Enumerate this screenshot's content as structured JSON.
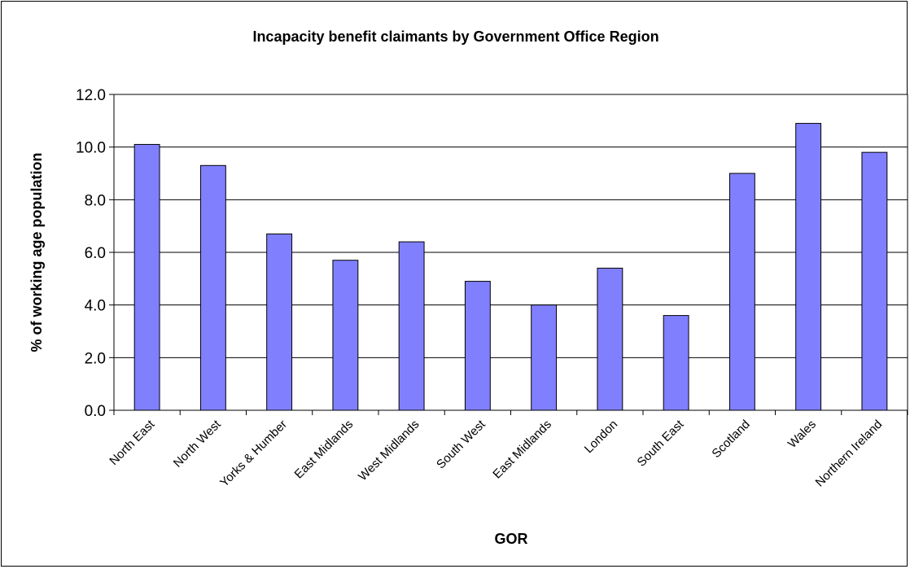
{
  "chart_data": {
    "type": "bar",
    "title": "Incapacity benefit claimants by Government Office Region",
    "xlabel": "GOR",
    "ylabel": "% of working age population",
    "categories": [
      "North East",
      "North West",
      "Yorks & Humber",
      "East Midlands",
      "West Midlands",
      "South West",
      "East Midlands",
      "London",
      "South East",
      "Scotland",
      "Wales",
      "Northern Ireland"
    ],
    "values": [
      10.1,
      9.3,
      6.7,
      5.7,
      6.4,
      4.9,
      4.0,
      5.4,
      3.6,
      9.0,
      10.9,
      9.8
    ],
    "ylim": [
      0,
      12
    ],
    "yticks": [
      "0.0",
      "2.0",
      "4.0",
      "6.0",
      "8.0",
      "10.0",
      "12.0"
    ],
    "grid": true,
    "legend": "none",
    "bar_color": "#8080FF",
    "plot_background": "#FFFFFF"
  }
}
